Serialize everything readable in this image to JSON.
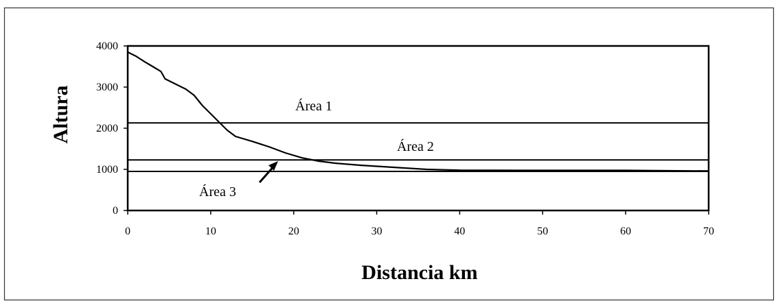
{
  "chart_data": {
    "type": "line",
    "xlabel": "Distancia km",
    "ylabel": "Altura",
    "xlim": [
      0,
      70
    ],
    "ylim": [
      0,
      4000
    ],
    "xticks": [
      0,
      10,
      20,
      30,
      40,
      50,
      60,
      70
    ],
    "yticks": [
      0,
      1000,
      2000,
      3000,
      4000
    ],
    "grid": false,
    "legend": "none",
    "series": [
      {
        "x": [
          0,
          1,
          2,
          3,
          4,
          4.5,
          5,
          6,
          7,
          8,
          9,
          10,
          11,
          12,
          13,
          15,
          17,
          19,
          21,
          23,
          25,
          28,
          32,
          36,
          40,
          50,
          60,
          70
        ],
        "y": [
          3850,
          3750,
          3620,
          3500,
          3380,
          3200,
          3150,
          3050,
          2950,
          2800,
          2550,
          2350,
          2150,
          1950,
          1800,
          1680,
          1550,
          1400,
          1280,
          1200,
          1150,
          1100,
          1050,
          1000,
          980,
          975,
          975,
          960
        ]
      }
    ],
    "reference_lines": [
      {
        "y": 2130,
        "label": "Área 1"
      },
      {
        "y": 1230,
        "label": "Área 2"
      },
      {
        "y": 950,
        "label": "Área 3"
      }
    ]
  }
}
